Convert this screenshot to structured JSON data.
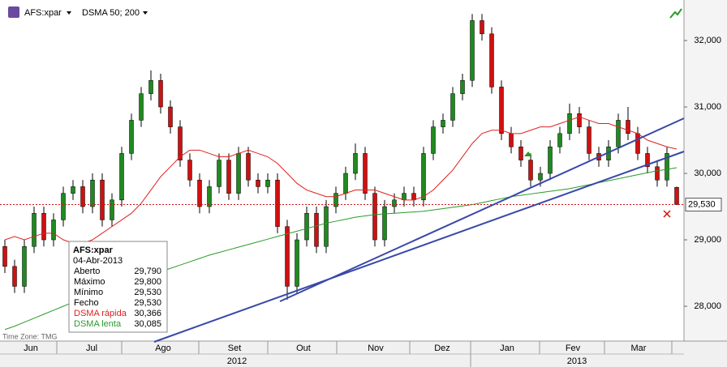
{
  "toolbar": {
    "symbol": "AFS:xpar",
    "indicator": "DSMA 50; 200"
  },
  "time_zone": "Time Zone: TMG",
  "tooltip": {
    "title": "AFS:xpar",
    "date": "04-Abr-2013",
    "rows": [
      [
        "Aberto",
        "29,790"
      ],
      [
        "Máximo",
        "29,800"
      ],
      [
        "Mínimo",
        "29,530"
      ],
      [
        "Fecho",
        "29,530"
      ],
      [
        "DSMA rápida",
        "30,366"
      ],
      [
        "DSMA lenta",
        "30,085"
      ]
    ]
  },
  "chart_data": {
    "type": "candlestick",
    "categories": [
      null,
      null,
      null,
      null,
      null,
      null,
      null,
      null,
      null,
      null,
      null,
      null,
      null,
      null,
      null,
      null,
      null,
      null,
      null,
      null,
      null,
      null,
      null,
      null,
      null,
      null,
      null,
      null,
      null,
      null,
      null,
      null,
      null,
      null,
      null,
      null,
      null,
      null,
      null,
      null,
      null,
      null,
      null,
      null,
      null,
      null,
      null,
      null,
      null,
      null,
      null,
      null,
      null,
      null,
      null,
      null,
      null,
      null,
      null,
      null,
      null,
      null,
      null,
      null,
      null,
      null,
      null,
      null,
      null,
      null
    ],
    "open": [
      28900,
      28600,
      28300,
      28900,
      29400,
      29000,
      29300,
      29700,
      29800,
      29500,
      29900,
      29300,
      29600,
      30300,
      30800,
      31200,
      31400,
      31000,
      30700,
      30200,
      29900,
      29500,
      29800,
      30200,
      29700,
      30300,
      29900,
      29800,
      29900,
      29200,
      28300,
      29000,
      29400,
      28900,
      29500,
      29700,
      30000,
      30300,
      29700,
      29000,
      29500,
      29600,
      29700,
      29600,
      30300,
      30700,
      30800,
      31200,
      31400,
      32300,
      32100,
      31300,
      30600,
      30400,
      30200,
      29900,
      30000,
      30400,
      30600,
      30900,
      30700,
      30300,
      30200,
      30400,
      30800,
      30600,
      30300,
      30100,
      29900,
      29790
    ],
    "high": [
      29000,
      28700,
      29000,
      29500,
      29500,
      29400,
      29800,
      29900,
      29900,
      30000,
      30000,
      29700,
      30400,
      30900,
      31300,
      31550,
      31500,
      31100,
      30800,
      30300,
      30000,
      29900,
      30300,
      30300,
      30400,
      30400,
      30000,
      30000,
      30000,
      29300,
      29100,
      29500,
      29500,
      29600,
      29800,
      30100,
      30450,
      30400,
      29800,
      29600,
      29700,
      29800,
      29800,
      30400,
      30800,
      30900,
      31300,
      31500,
      32400,
      32400,
      32200,
      31400,
      30700,
      30500,
      30300,
      30100,
      30500,
      30700,
      31050,
      31000,
      30800,
      30400,
      30500,
      30900,
      31000,
      30700,
      30400,
      30200,
      30400,
      29800
    ],
    "low": [
      28500,
      28200,
      28200,
      28800,
      28900,
      28900,
      29200,
      29600,
      29400,
      29400,
      29200,
      29200,
      29500,
      30200,
      30700,
      31100,
      30900,
      30600,
      30100,
      29800,
      29400,
      29400,
      29700,
      29600,
      29600,
      29800,
      29700,
      29700,
      29100,
      28100,
      28200,
      28900,
      28800,
      28800,
      29400,
      29600,
      29900,
      29600,
      28900,
      28900,
      29400,
      29500,
      29500,
      29500,
      30200,
      30600,
      30700,
      31100,
      31300,
      32000,
      31200,
      30500,
      30300,
      30100,
      29800,
      29800,
      29900,
      30300,
      30500,
      30600,
      30200,
      30100,
      30100,
      30300,
      30500,
      30200,
      30000,
      29800,
      29800,
      29530
    ],
    "close": [
      28600,
      28300,
      28900,
      29400,
      29000,
      29300,
      29700,
      29800,
      29500,
      29900,
      29300,
      29600,
      30300,
      30800,
      31200,
      31400,
      31000,
      30700,
      30200,
      29900,
      29500,
      29800,
      30200,
      29700,
      30300,
      29900,
      29800,
      29900,
      29200,
      28300,
      29000,
      29400,
      28900,
      29500,
      29700,
      30000,
      30300,
      29700,
      29000,
      29500,
      29600,
      29700,
      29600,
      30300,
      30700,
      30800,
      31200,
      31400,
      32300,
      32100,
      31300,
      30600,
      30400,
      30200,
      29900,
      30000,
      30400,
      30600,
      30900,
      30700,
      30300,
      30200,
      30400,
      30800,
      30600,
      30300,
      30100,
      29900,
      30300,
      29530
    ],
    "up_color": "#1f8a1f",
    "down_color": "#d01010",
    "series": [
      {
        "name": "DSMA rápida",
        "color": "#e02020",
        "values": [
          29000,
          29050,
          29000,
          29050,
          29100,
          29100,
          29000,
          28950,
          28950,
          29000,
          29100,
          29200,
          29300,
          29400,
          29550,
          29750,
          29950,
          30100,
          30250,
          30350,
          30350,
          30300,
          30250,
          30250,
          30300,
          30350,
          30300,
          30250,
          30150,
          30000,
          29850,
          29750,
          29700,
          29650,
          29650,
          29700,
          29750,
          29750,
          29750,
          29700,
          29650,
          29600,
          29600,
          29650,
          29750,
          29900,
          30050,
          30250,
          30450,
          30600,
          30650,
          30650,
          30600,
          30600,
          30650,
          30700,
          30700,
          30750,
          30800,
          30850,
          30800,
          30750,
          30750,
          30700,
          30650,
          30600,
          30500,
          30450,
          30400,
          30366
        ]
      },
      {
        "name": "DSMA lenta",
        "color": "#2a9a2a",
        "values": [
          27650,
          27700,
          27760,
          27820,
          27880,
          27940,
          28000,
          28060,
          28120,
          28180,
          28220,
          28270,
          28320,
          28370,
          28420,
          28470,
          28520,
          28570,
          28620,
          28670,
          28720,
          28770,
          28810,
          28850,
          28890,
          28930,
          28970,
          29010,
          29050,
          29090,
          29130,
          29170,
          29210,
          29250,
          29280,
          29310,
          29340,
          29360,
          29380,
          29390,
          29400,
          29410,
          29420,
          29430,
          29450,
          29470,
          29490,
          29510,
          29530,
          29560,
          29590,
          29620,
          29650,
          29670,
          29690,
          29710,
          29730,
          29750,
          29770,
          29800,
          29830,
          29860,
          29890,
          29920,
          29950,
          29980,
          30010,
          30040,
          30060,
          30085
        ]
      }
    ],
    "ylim": [
      27488,
      32610
    ],
    "yticks": [
      {
        "value": 28000,
        "label": "28,000"
      },
      {
        "value": 29000,
        "label": "29,000"
      },
      {
        "value": 30000,
        "label": "30,000"
      },
      {
        "value": 31000,
        "label": "31,000"
      },
      {
        "value": 32000,
        "label": "32,000"
      }
    ],
    "last_price": {
      "value": 29530,
      "label": "29,530"
    },
    "months": [
      "Jun",
      "Jul",
      "Ago",
      "Set",
      "Out",
      "Nov",
      "Dez",
      "Jan",
      "Fev",
      "Mar"
    ],
    "years": [
      "2012",
      "2013"
    ]
  }
}
